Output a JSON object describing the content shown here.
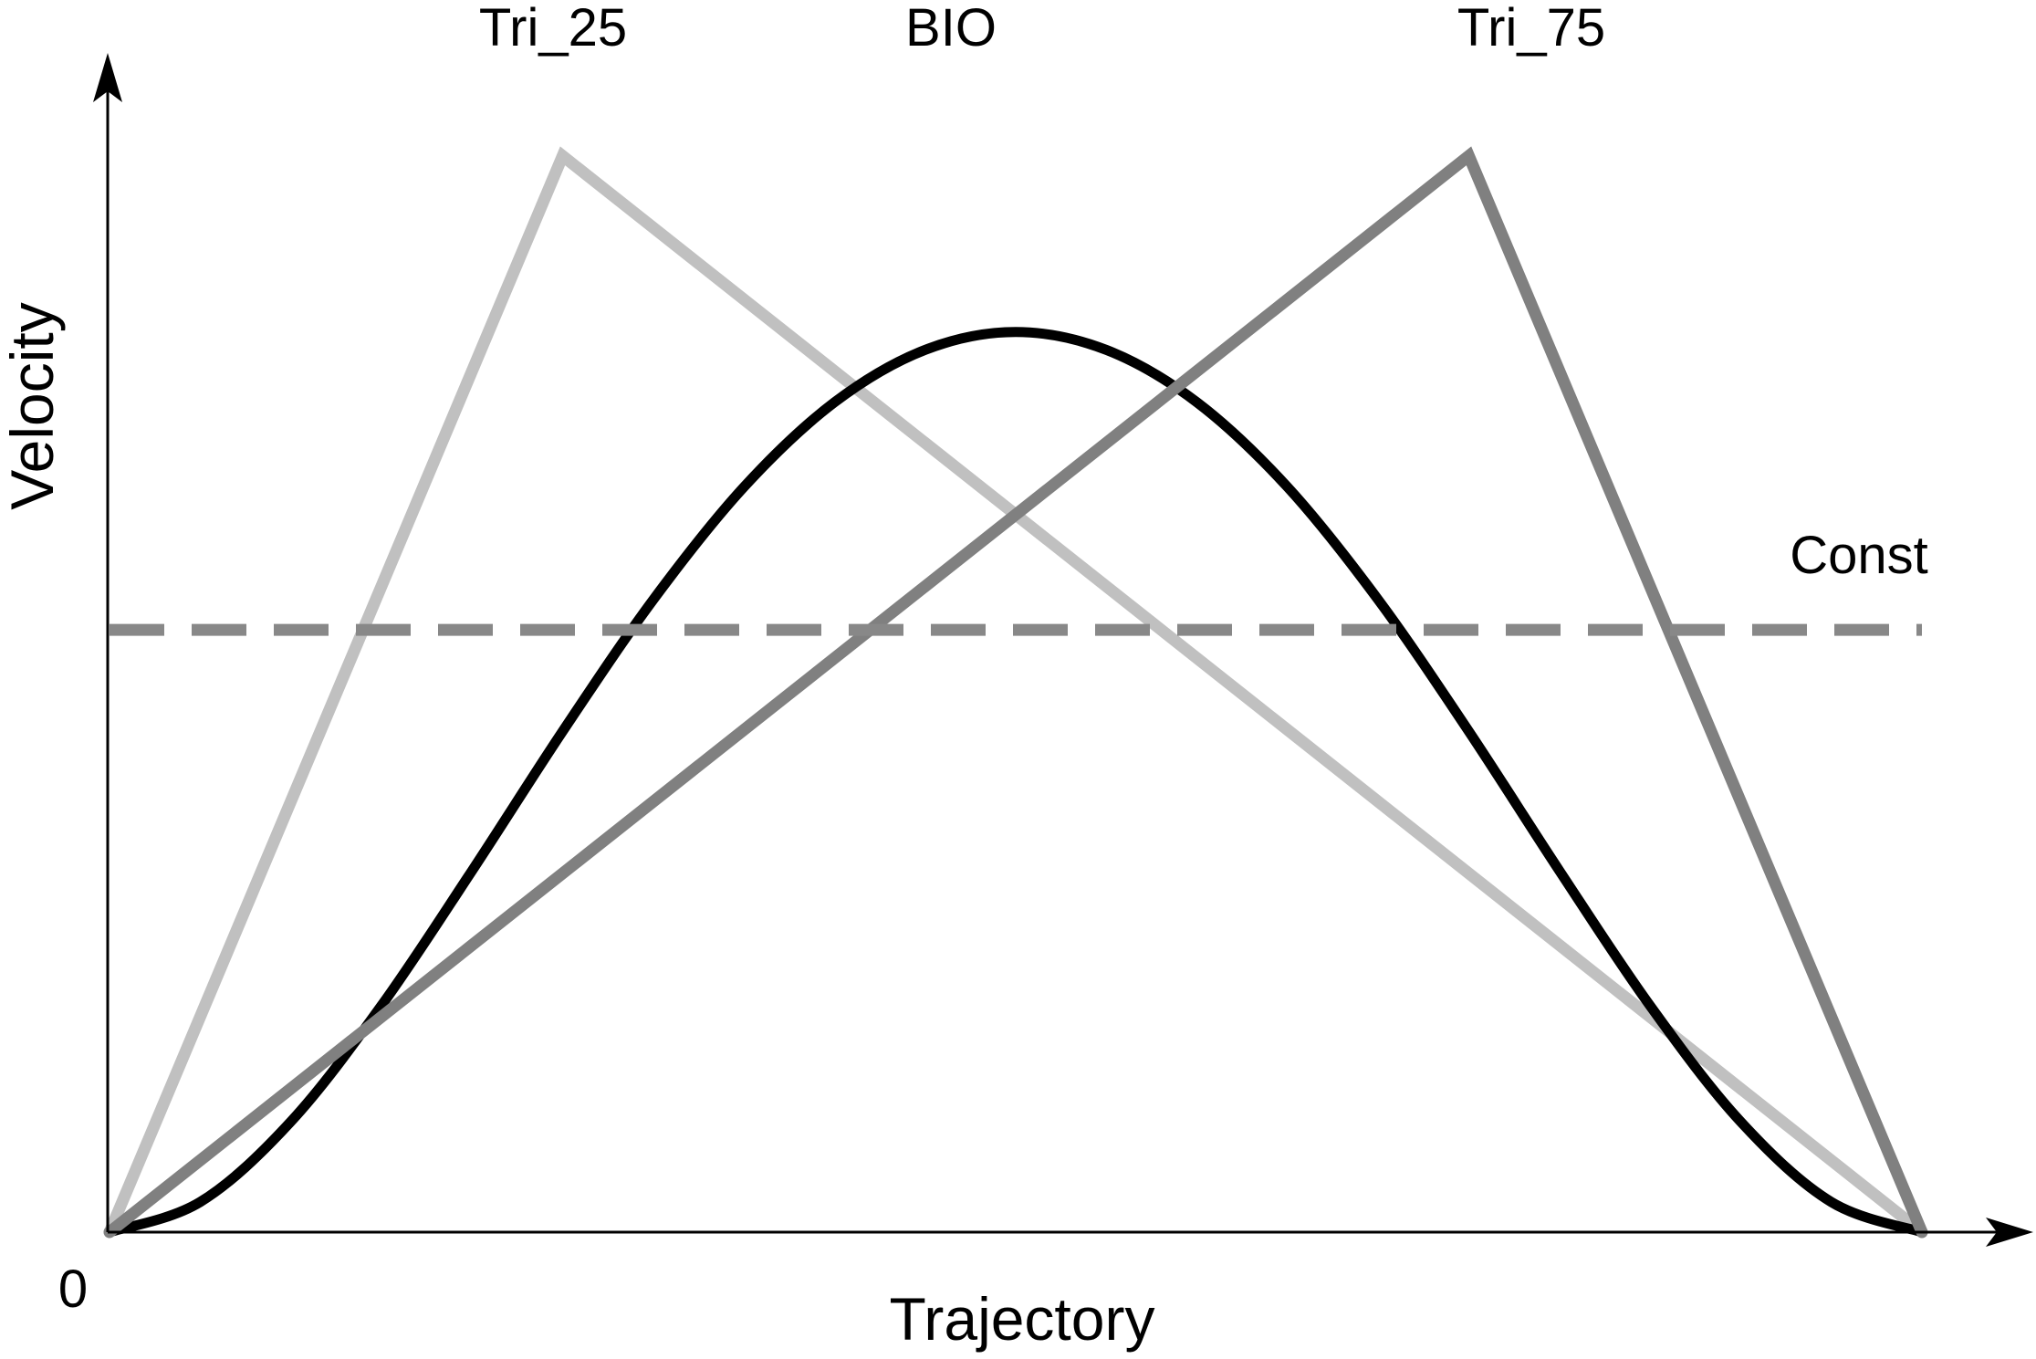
{
  "chart_data": {
    "type": "line",
    "title": "",
    "xlabel": "Trajectory",
    "ylabel": "Velocity",
    "origin_tick": "0",
    "xlim": [
      0,
      1
    ],
    "ylim": [
      0,
      1
    ],
    "grid": false,
    "legend": "none (series labeled directly above curves)",
    "axis_arrows": true,
    "series": [
      {
        "name": "Tri_25",
        "color": "#c0c0c0",
        "style": "solid",
        "x": [
          0,
          0.25,
          1
        ],
        "y": [
          0,
          0.965,
          0
        ]
      },
      {
        "name": "BIO",
        "color": "#000000",
        "style": "solid",
        "x": [
          0,
          0.05,
          0.1,
          0.15,
          0.2,
          0.25,
          0.3,
          0.35,
          0.4,
          0.45,
          0.5,
          0.55,
          0.6,
          0.65,
          0.7,
          0.75,
          0.8,
          0.85,
          0.9,
          0.95,
          1
        ],
        "y": [
          0,
          0.027,
          0.099,
          0.203,
          0.324,
          0.449,
          0.567,
          0.668,
          0.744,
          0.791,
          0.807,
          0.791,
          0.744,
          0.668,
          0.567,
          0.449,
          0.324,
          0.203,
          0.099,
          0.027,
          0
        ]
      },
      {
        "name": "Tri_75",
        "color": "#808080",
        "style": "solid",
        "x": [
          0,
          0.75,
          1
        ],
        "y": [
          0,
          0.965,
          0
        ]
      },
      {
        "name": "Const",
        "color": "#888888",
        "style": "dashed",
        "x": [
          0,
          1
        ],
        "y": [
          0.54,
          0.54
        ]
      }
    ]
  }
}
